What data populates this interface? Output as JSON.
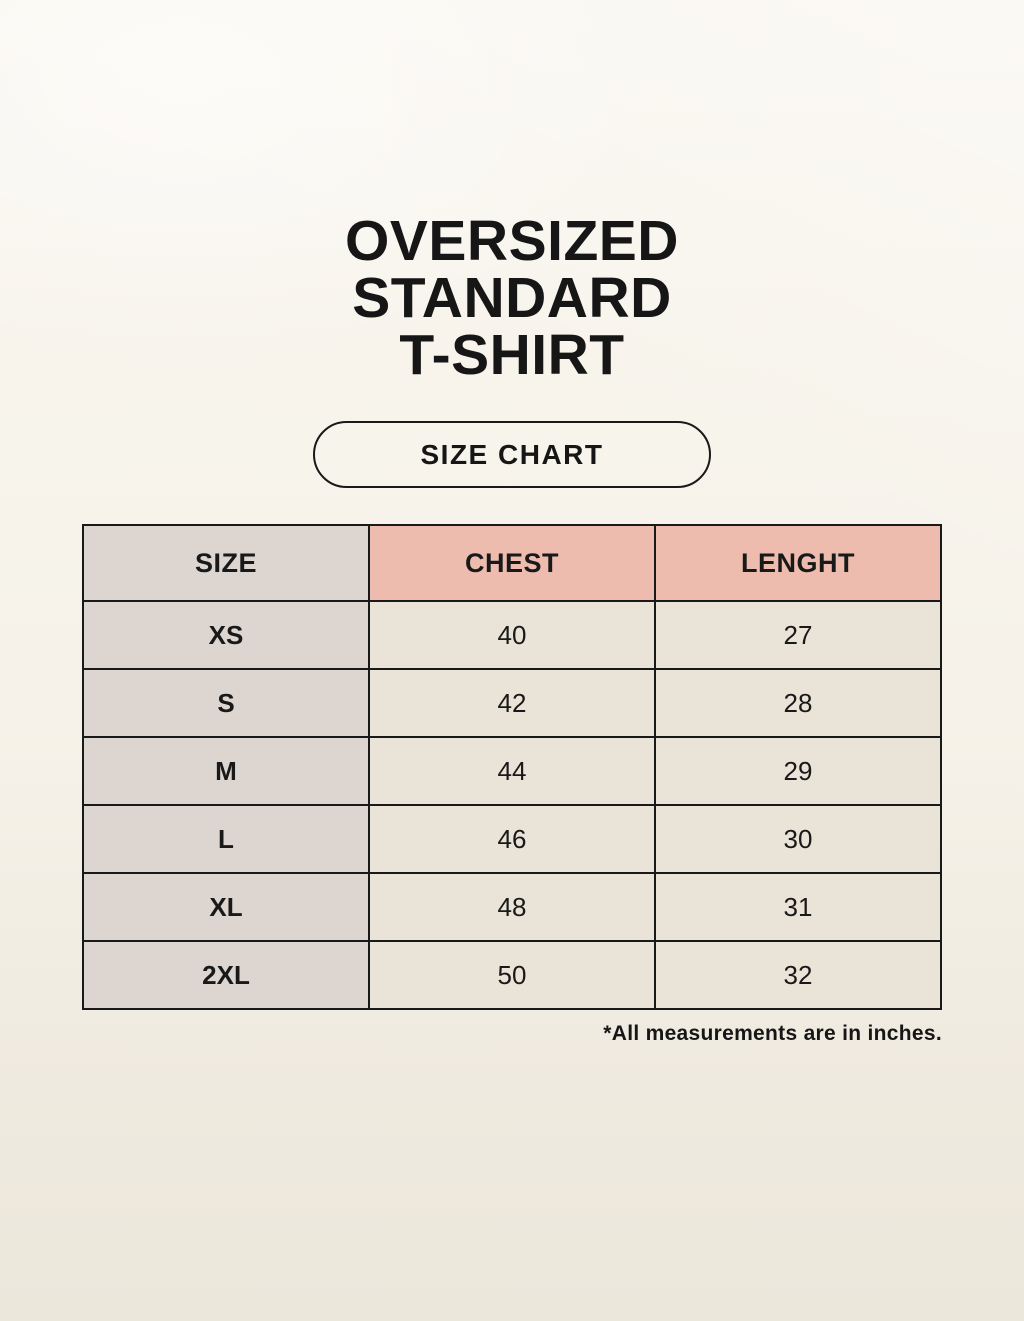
{
  "header": {
    "title_lines": [
      "OVERSIZED",
      "STANDARD",
      "T-SHIRT"
    ],
    "size_chart_label": "SIZE CHART"
  },
  "footnote": "*All measurements are in inches.",
  "colors": {
    "background_top": "#f9f6ef",
    "background_bottom": "#ece7db",
    "size_column_bg": "#ddd6d0",
    "header_pink_bg": "#edbcae",
    "data_cell_bg": "#eae3d8",
    "border_and_text": "#191919"
  },
  "chart_data": {
    "type": "table",
    "title": "OVERSIZED STANDARD T-SHIRT — SIZE CHART",
    "columns": [
      "SIZE",
      "CHEST",
      "LENGHT"
    ],
    "rows": [
      [
        "XS",
        40,
        27
      ],
      [
        "S",
        42,
        28
      ],
      [
        "M",
        44,
        29
      ],
      [
        "L",
        46,
        30
      ],
      [
        "XL",
        48,
        31
      ],
      [
        "2XL",
        50,
        32
      ]
    ],
    "units": "inches",
    "note": "*All measurements are in inches."
  }
}
